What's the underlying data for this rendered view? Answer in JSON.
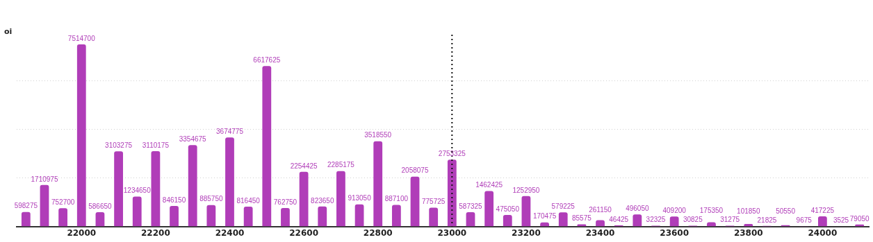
{
  "chart_data": {
    "type": "bar",
    "ylabel": "oi",
    "x": [
      21850,
      21900,
      21950,
      22000,
      22050,
      22100,
      22150,
      22200,
      22250,
      22300,
      22350,
      22400,
      22450,
      22500,
      22550,
      22600,
      22650,
      22700,
      22750,
      22800,
      22850,
      22900,
      22950,
      23000,
      23050,
      23100,
      23150,
      23200,
      23250,
      23300,
      23350,
      23400,
      23450,
      23500,
      23550,
      23600,
      23650,
      23700,
      23750,
      23800,
      23850,
      23900,
      23950,
      24000,
      24050,
      24100
    ],
    "values": [
      598275,
      1710975,
      752700,
      7514700,
      586650,
      3103275,
      1234650,
      3110175,
      846150,
      3354675,
      885750,
      3674775,
      816450,
      6617625,
      762750,
      2254425,
      823650,
      2285175,
      913050,
      3518550,
      887100,
      2058075,
      775725,
      2753325,
      587325,
      1462425,
      475050,
      1252950,
      170475,
      579225,
      85575,
      261150,
      46425,
      496050,
      32325,
      409200,
      30825,
      175350,
      31275,
      101850,
      21825,
      50550,
      9675,
      417225,
      3525,
      79050
    ],
    "color": "#b03db8",
    "xlim": [
      21825,
      24125
    ],
    "xticks": [
      22000,
      22200,
      22400,
      22600,
      22800,
      23000,
      23200,
      23400,
      23600,
      23800,
      24000
    ],
    "ylim": [
      0,
      8000000
    ],
    "yticks": [
      {
        "value": 2000000,
        "label": null
      },
      {
        "value": 4000000,
        "label": null
      },
      {
        "value": 6000000,
        "label": null
      }
    ],
    "tick_labels": "x",
    "grid": "y",
    "legend": false,
    "data_labels": true,
    "ref_lines": [
      {
        "axis": "x",
        "value": 23000,
        "color": "#111111",
        "line_style": "dotted"
      }
    ]
  }
}
